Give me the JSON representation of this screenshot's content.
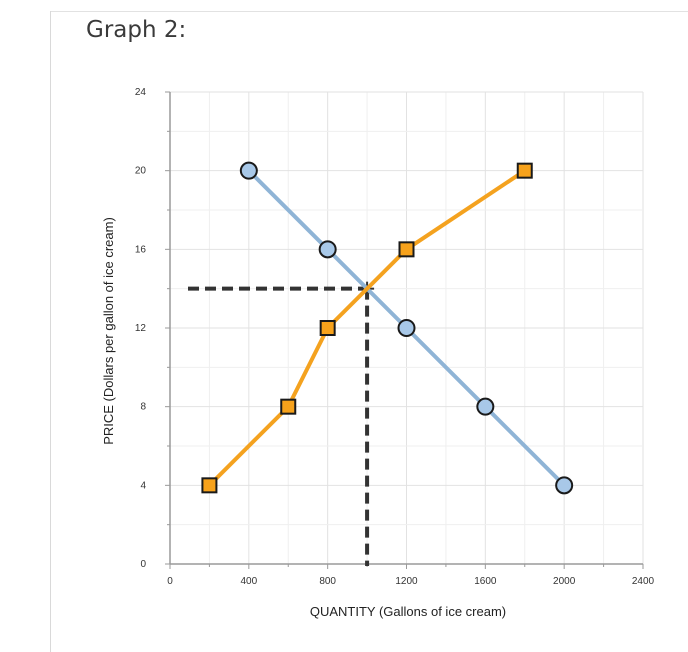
{
  "heading": "Graph 2:",
  "chart_data": {
    "type": "line",
    "xlabel": "QUANTITY (Gallons of ice cream)",
    "ylabel": "PRICE (Dollars per gallon of ice cream)",
    "xlim": [
      0,
      2400
    ],
    "ylim": [
      0,
      24
    ],
    "x_ticks": [
      0,
      400,
      800,
      1200,
      1600,
      2000,
      2400
    ],
    "y_ticks": [
      0,
      4,
      8,
      12,
      16,
      20,
      24
    ],
    "grid": true,
    "series": [
      {
        "marker": "circle",
        "color": "#8fb4d6",
        "marker_fill": "#a8c8e8",
        "points": [
          [
            400,
            20
          ],
          [
            800,
            16
          ],
          [
            1200,
            12
          ],
          [
            1600,
            8
          ],
          [
            2000,
            4
          ]
        ]
      },
      {
        "marker": "square",
        "color": "#f4a21f",
        "marker_fill": "#f7a21b",
        "points": [
          [
            200,
            4
          ],
          [
            600,
            8
          ],
          [
            800,
            12
          ],
          [
            1200,
            16
          ],
          [
            1800,
            20
          ]
        ]
      }
    ],
    "reference_point": {
      "x": 1000,
      "y": 14,
      "style": "dashed",
      "color": "#333333"
    }
  }
}
